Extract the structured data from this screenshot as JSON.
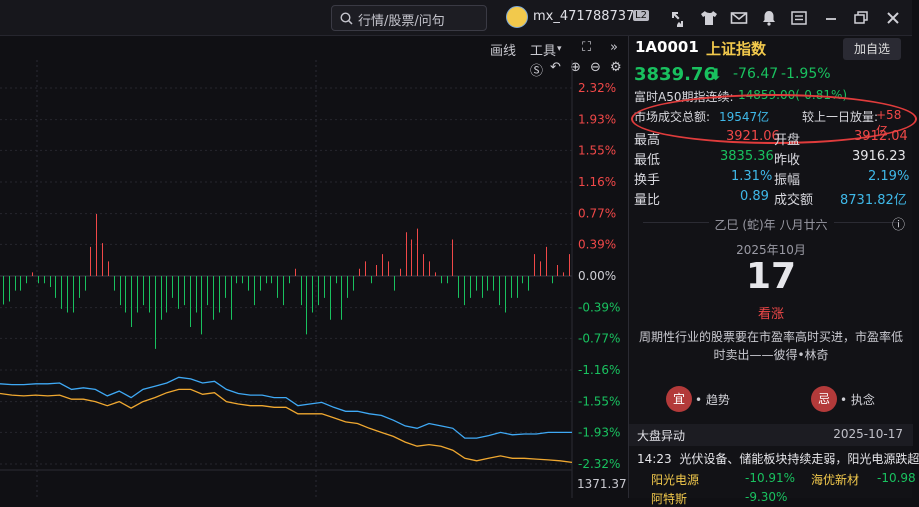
{
  "topbar": {
    "search_placeholder": "行情/股票/问句",
    "username": "mx_471788737",
    "level": "L2"
  },
  "toolbar": {
    "draw_label": "画线",
    "tools_label": "工具"
  },
  "chart": {
    "pct_labels": [
      "2.32%",
      "1.93%",
      "1.55%",
      "1.16%",
      "0.77%",
      "0.39%",
      "0.00%",
      "-0.39%",
      "-0.77%",
      "-1.16%",
      "-1.55%",
      "-1.93%",
      "-2.32%"
    ],
    "bottom_value": "1371.37"
  },
  "quote": {
    "code": "1A0001",
    "name": "上证指数",
    "add_label": "加自选",
    "price": "3839.76",
    "change": "-76.47",
    "change_pct": "-1.95%",
    "a50_label": "富时A50期指连续:",
    "a50_value": "14859.00(-0.81%)",
    "turnover_total_label": "市场成交总额:",
    "turnover_total_value": "19547亿",
    "vs_prev_label": "较上一日放量:",
    "vs_prev_value": "+58亿",
    "high_label": "最高",
    "high_value": "3921.06",
    "open_label": "开盘",
    "open_value": "3912.04",
    "low_label": "最低",
    "low_value": "3835.36",
    "prev_close_label": "昨收",
    "prev_close_value": "3916.23",
    "turnover_label": "换手",
    "turnover_value": "1.31%",
    "amplitude_label": "振幅",
    "amplitude_value": "2.19%",
    "vol_ratio_label": "量比",
    "vol_ratio_value": "0.89",
    "amount_label": "成交额",
    "amount_value": "8731.82亿"
  },
  "calendar": {
    "lunar": "乙巳 (蛇)年 八月廿六",
    "month": "2025年10月",
    "day": "17",
    "outlook": "看涨",
    "quote_text": "周期性行业的股票要在市盈率高时买进，市盈率低时卖出——彼得•林奇",
    "good_badge": "宜",
    "good_text": "趋势",
    "bad_badge": "忌",
    "bad_text": "执念"
  },
  "market_moves": {
    "title": "大盘异动",
    "date": "2025-10-17",
    "news_time": "14:23",
    "news_text": "光伏设备、储能板块持续走弱，阳光电源跌超",
    "stocks": [
      {
        "name": "阳光电源",
        "pct": "-10.91%"
      },
      {
        "name": "海优新材",
        "pct": "-10.98"
      },
      {
        "name": "阿特斯",
        "pct": "-9.30%"
      }
    ]
  },
  "colors": {
    "up": "#f04848",
    "down": "#19c15f",
    "accent": "#f2c94c",
    "line_price": "#3fa9f5",
    "line_avg": "#f0a830",
    "highlight": "#e03c3c"
  },
  "chart_data": {
    "type": "bar",
    "ylim": [
      -2.32,
      2.32
    ],
    "bar_values": [
      -0.39,
      -0.35,
      -0.2,
      -0.2,
      -0.1,
      0.05,
      -0.1,
      -0.1,
      -0.15,
      -0.3,
      -0.45,
      -0.5,
      -0.5,
      -0.3,
      -0.2,
      0.4,
      0.85,
      0.45,
      0.2,
      -0.2,
      -0.4,
      -0.5,
      -0.7,
      -0.5,
      -0.4,
      -0.5,
      -1.0,
      -0.6,
      -0.5,
      -0.3,
      -0.45,
      -0.4,
      -0.7,
      -0.5,
      -0.8,
      -0.4,
      -0.6,
      -0.5,
      -0.3,
      -0.6,
      -0.1,
      -0.1,
      -0.2,
      -0.4,
      -0.2,
      -0.1,
      -0.1,
      -0.3,
      -0.4,
      -0.1,
      0.1,
      -0.4,
      -0.8,
      -0.5,
      -0.4,
      -0.3,
      -0.6,
      -0.1,
      -0.6,
      -0.3,
      -0.2,
      0.1,
      0.2,
      -0.1,
      0.15,
      0.3,
      0.2,
      -0.2,
      0.1,
      0.6,
      0.5,
      0.65,
      0.3,
      0.2,
      0.05,
      -0.1,
      -0.1,
      0.5,
      -0.3,
      -0.4,
      -0.3,
      -0.2,
      -0.3,
      -0.2,
      -0.2,
      -0.4,
      -0.5,
      -0.3,
      -0.3,
      -0.1,
      -0.2,
      0.3,
      0.2,
      0.4,
      -0.1,
      0.15,
      0.05,
      0.3
    ],
    "price_line": [
      -1.33,
      -1.34,
      -1.34,
      -1.33,
      -1.33,
      -1.32,
      -1.4,
      -1.38,
      -1.4,
      -1.48,
      -1.42,
      -1.5,
      -1.4,
      -1.36,
      -1.32,
      -1.25,
      -1.27,
      -1.32,
      -1.3,
      -1.4,
      -1.45,
      -1.47,
      -1.47,
      -1.5,
      -1.5,
      -1.6,
      -1.58,
      -1.56,
      -1.62,
      -1.67,
      -1.67,
      -1.7,
      -1.72,
      -1.78,
      -1.85,
      -1.88,
      -1.82,
      -1.85,
      -1.88,
      -2.0,
      -2.0,
      -1.97,
      -1.93,
      -1.96,
      -1.95,
      -1.95,
      -1.93,
      -1.93,
      -1.93
    ],
    "avg_line": [
      -1.45,
      -1.47,
      -1.48,
      -1.47,
      -1.48,
      -1.47,
      -1.52,
      -1.52,
      -1.55,
      -1.6,
      -1.55,
      -1.63,
      -1.55,
      -1.5,
      -1.44,
      -1.4,
      -1.4,
      -1.46,
      -1.44,
      -1.55,
      -1.58,
      -1.6,
      -1.6,
      -1.62,
      -1.62,
      -1.7,
      -1.7,
      -1.7,
      -1.75,
      -1.8,
      -1.82,
      -1.88,
      -1.93,
      -1.98,
      -2.05,
      -2.1,
      -2.08,
      -2.1,
      -2.15,
      -2.25,
      -2.28,
      -2.25,
      -2.22,
      -2.25,
      -2.25,
      -2.26,
      -2.27,
      -2.28,
      -2.3
    ]
  }
}
